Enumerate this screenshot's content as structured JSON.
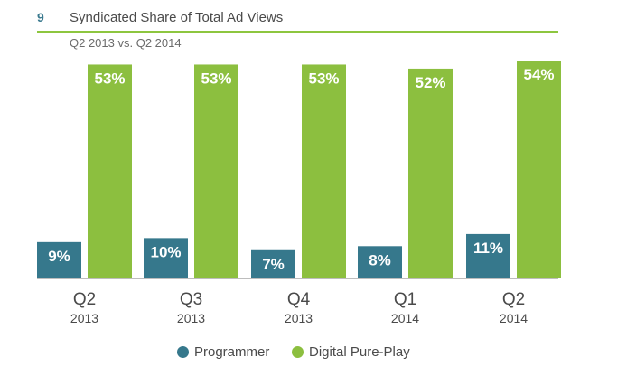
{
  "header": {
    "figure_number": "9",
    "title": "Syndicated Share of Total Ad Views",
    "subtitle": "Q2 2013 vs. Q2 2014"
  },
  "colors": {
    "programmer": "#36788c",
    "digital_pure_play": "#8cbf3f",
    "accent_line": "#8dc63f",
    "text": "#4a4a4a"
  },
  "legend": [
    {
      "label": "Programmer",
      "color": "#36788c"
    },
    {
      "label": "Digital Pure-Play",
      "color": "#8cbf3f"
    }
  ],
  "chart_data": {
    "type": "bar",
    "title": "Syndicated Share of Total Ad Views",
    "subtitle": "Q2 2013 vs. Q2 2014",
    "categories": [
      {
        "quarter": "Q2",
        "year": "2013"
      },
      {
        "quarter": "Q3",
        "year": "2013"
      },
      {
        "quarter": "Q4",
        "year": "2013"
      },
      {
        "quarter": "Q1",
        "year": "2014"
      },
      {
        "quarter": "Q2",
        "year": "2014"
      }
    ],
    "series": [
      {
        "name": "Programmer",
        "values": [
          9,
          10,
          7,
          8,
          11
        ],
        "labels": [
          "9%",
          "10%",
          "7%",
          "8%",
          "11%"
        ]
      },
      {
        "name": "Digital Pure-Play",
        "values": [
          53,
          53,
          53,
          52,
          54
        ],
        "labels": [
          "53%",
          "53%",
          "53%",
          "52%",
          "54%"
        ]
      }
    ],
    "unit": "%",
    "ylim": [
      0,
      54
    ],
    "grid": false,
    "legend_position": "bottom"
  }
}
